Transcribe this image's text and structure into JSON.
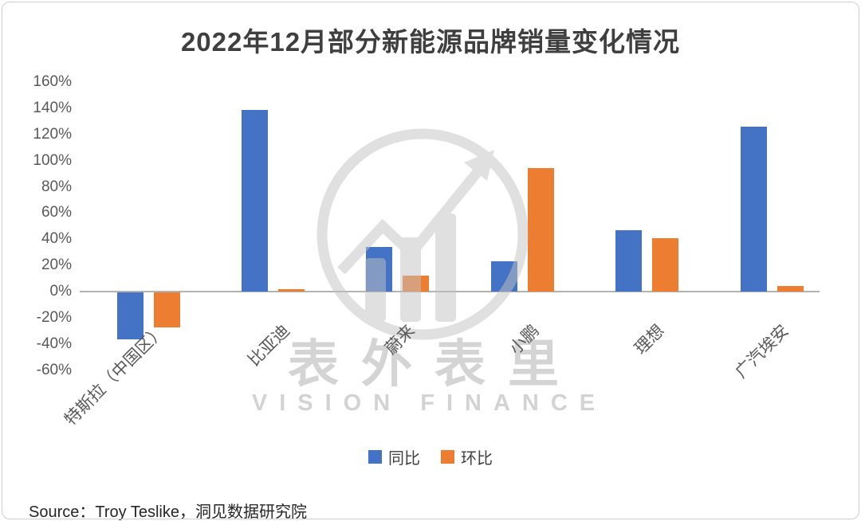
{
  "title": "2022年12月部分新能源品牌销量变化情况",
  "source": "Source：Troy Teslike，洞见数据研究院",
  "watermark": {
    "brand": "表外表里",
    "subbrand": "VISION FINANCE"
  },
  "colors": {
    "yoy_blue": "#4472C4",
    "mom_orange": "#ED7D31",
    "axis_text": "#595959",
    "watermark_gray": "#c6c6c6"
  },
  "chart_data": {
    "type": "bar",
    "title": "2022年12月部分新能源品牌销量变化情况",
    "categories": [
      "特斯拉（中国区）",
      "比亚迪",
      "蔚来",
      "小鹏",
      "理想",
      "广汽埃安"
    ],
    "series": [
      {
        "name": "同比",
        "color": "#4472C4",
        "values": [
          -36,
          139,
          34,
          23,
          47,
          126
        ]
      },
      {
        "name": "环比",
        "color": "#ED7D31",
        "values": [
          -27,
          2,
          12,
          94,
          41,
          4
        ]
      }
    ],
    "ylabel": "",
    "xlabel": "",
    "ylim": [
      -60,
      160
    ],
    "ytick_step": 20,
    "ytick_format": "percent",
    "grid": false,
    "legend_position": "bottom"
  }
}
